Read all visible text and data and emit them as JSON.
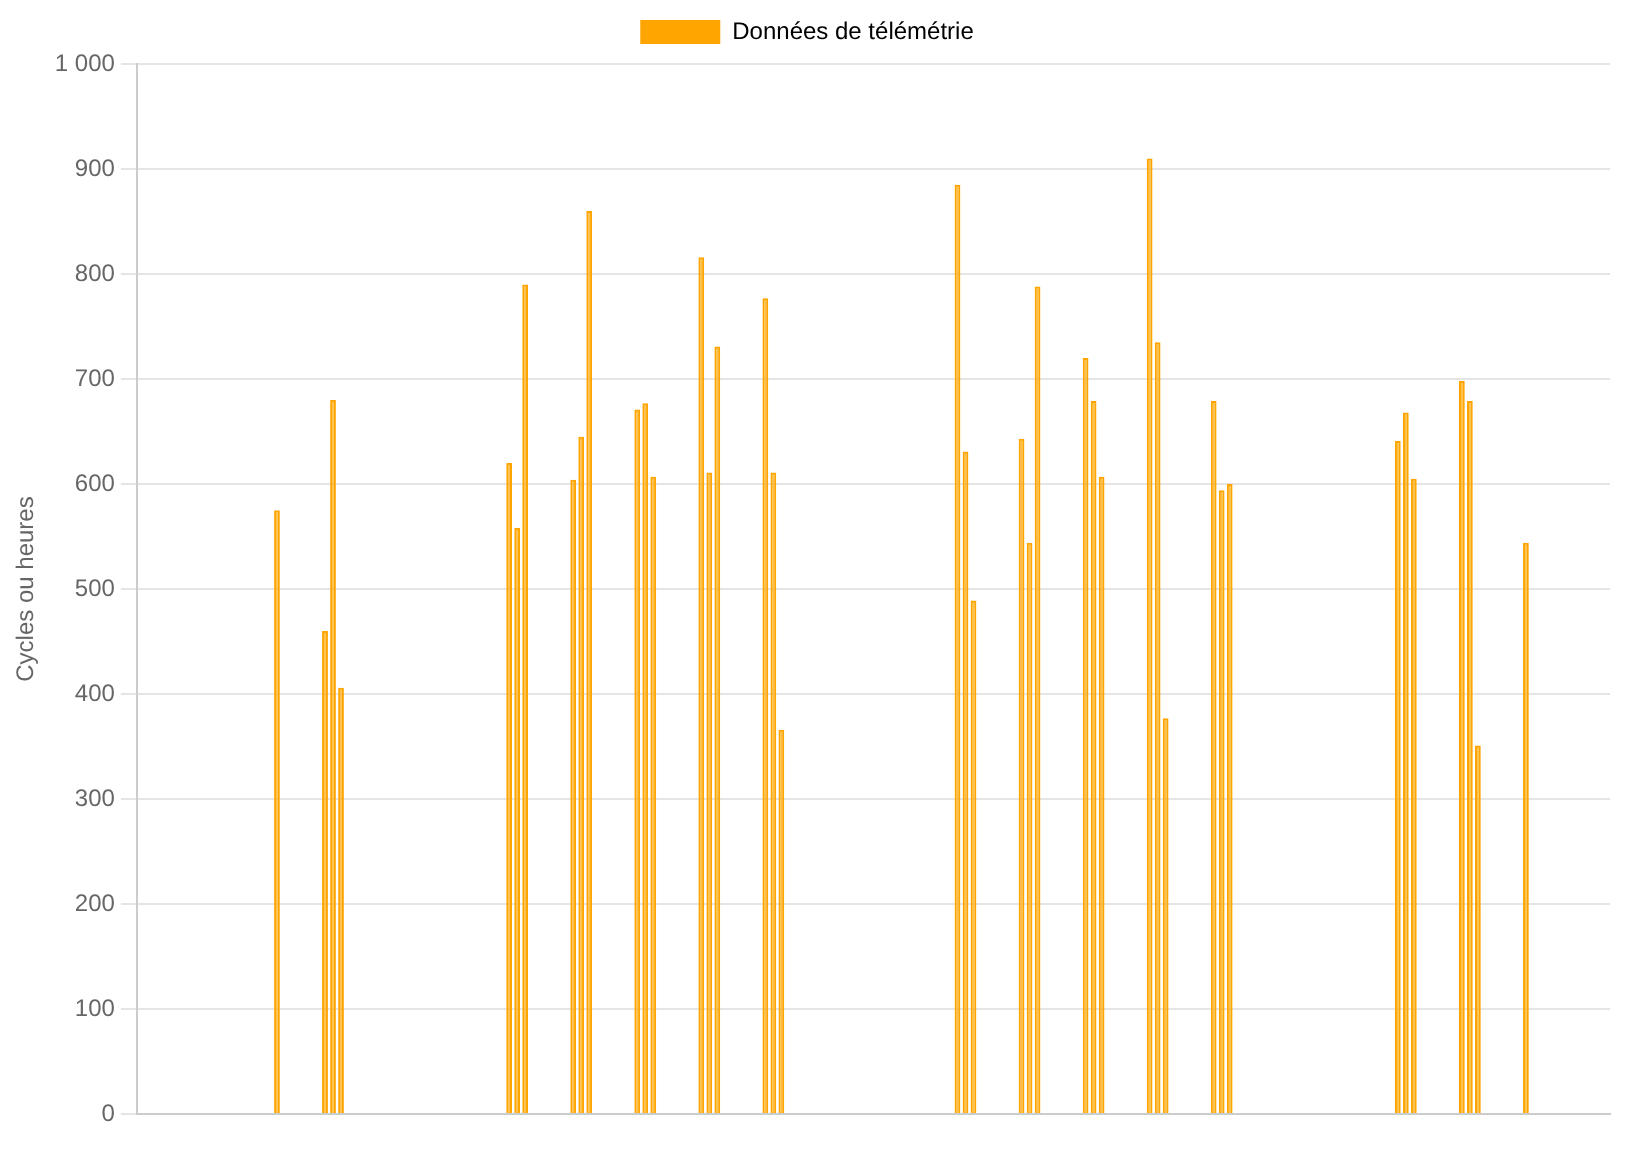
{
  "chart_data": {
    "type": "bar",
    "ylabel": "Cycles ou heures",
    "categories": [
      null,
      null,
      null,
      null,
      null,
      null,
      null,
      null,
      null,
      null,
      null,
      null,
      null,
      null,
      null,
      null,
      null,
      null,
      null,
      null,
      null,
      null,
      null,
      null,
      null,
      null,
      null,
      null,
      null,
      null,
      null,
      null,
      null,
      null,
      null,
      null,
      null,
      null,
      null,
      null,
      null,
      null,
      null,
      null,
      null,
      null,
      null,
      null,
      null,
      null,
      null,
      null,
      null,
      null,
      null,
      null,
      null,
      null,
      null,
      null,
      null,
      null,
      null,
      null,
      null,
      null,
      null,
      null,
      null,
      null,
      null,
      null,
      null,
      null,
      null,
      null,
      null,
      null,
      null,
      null,
      null,
      null,
      null,
      null,
      null,
      null,
      null,
      null,
      null,
      null,
      null,
      null,
      null,
      null,
      null,
      null,
      null,
      null,
      null,
      null,
      null,
      null,
      null,
      null,
      null,
      null,
      null,
      null,
      null,
      null,
      null,
      null,
      null,
      null,
      null,
      null,
      null,
      null,
      null,
      null,
      null,
      null,
      null,
      null,
      null,
      null,
      null,
      null,
      null,
      null,
      null,
      null,
      null,
      null,
      null,
      null,
      null,
      null,
      null,
      null,
      null,
      null,
      null,
      null,
      null,
      null,
      null,
      null,
      null,
      null,
      null,
      null,
      null,
      null,
      null,
      null,
      null,
      null,
      null,
      null,
      null,
      null,
      null,
      null,
      null,
      null,
      null,
      null,
      null,
      null,
      null,
      null,
      null,
      null,
      null,
      null,
      null,
      null,
      null,
      null,
      null,
      null,
      null,
      null
    ],
    "series": [
      {
        "name": "Données de télémétrie",
        "color": "#ffa500",
        "values": [
          null,
          null,
          null,
          null,
          null,
          null,
          null,
          null,
          null,
          null,
          null,
          null,
          null,
          null,
          null,
          null,
          null,
          575,
          null,
          null,
          null,
          null,
          null,
          460,
          680,
          406,
          null,
          null,
          null,
          null,
          null,
          null,
          null,
          null,
          null,
          null,
          null,
          null,
          null,
          null,
          null,
          null,
          null,
          null,
          null,
          null,
          620,
          558,
          790,
          null,
          null,
          null,
          null,
          null,
          604,
          645,
          860,
          null,
          null,
          null,
          null,
          null,
          671,
          677,
          607,
          null,
          null,
          null,
          null,
          null,
          816,
          611,
          731,
          null,
          null,
          null,
          null,
          null,
          777,
          611,
          366,
          null,
          null,
          null,
          null,
          null,
          null,
          null,
          null,
          null,
          null,
          null,
          null,
          null,
          null,
          null,
          null,
          null,
          null,
          null,
          null,
          null,
          885,
          631,
          489,
          null,
          null,
          null,
          null,
          null,
          643,
          544,
          788,
          null,
          null,
          null,
          null,
          null,
          720,
          679,
          607,
          null,
          null,
          null,
          null,
          null,
          910,
          735,
          377,
          null,
          null,
          null,
          null,
          null,
          679,
          594,
          600,
          null,
          null,
          null,
          null,
          null,
          null,
          null,
          null,
          null,
          null,
          null,
          null,
          null,
          null,
          null,
          null,
          null,
          null,
          null,
          null,
          641,
          668,
          605,
          null,
          null,
          null,
          null,
          null,
          698,
          679,
          351,
          null,
          null,
          null,
          null,
          null,
          544,
          null,
          null,
          null,
          null,
          null,
          null,
          null,
          null,
          null,
          null
        ]
      }
    ],
    "ylim": [
      0,
      1000
    ],
    "yticks": [
      0,
      100,
      200,
      300,
      400,
      500,
      600,
      700,
      800,
      900,
      {
        "value": 1000,
        "label": "1 000"
      }
    ],
    "grid": "y",
    "legend": "top",
    "tick_labels": "y"
  }
}
